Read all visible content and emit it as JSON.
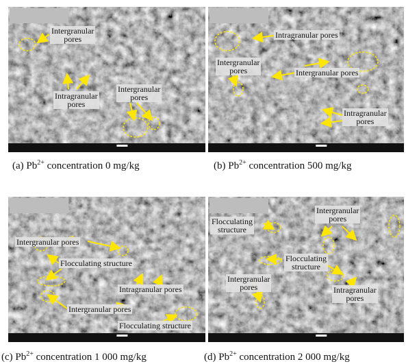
{
  "panels": [
    {
      "labels": [
        [
          "Intergranular",
          "pores"
        ],
        [
          "Intragranular",
          "pores"
        ],
        [
          "Intergranular",
          "pores"
        ]
      ],
      "caption": {
        "prefix": "(a) Pb",
        "sup": "2+",
        "suffix": " concentration 0 mg/kg"
      }
    },
    {
      "labels": [
        [
          "Intragranular pores"
        ],
        [
          "Intergranular",
          "pores"
        ],
        [
          "Intergranular pores"
        ],
        [
          "Intragranular",
          "pores"
        ]
      ],
      "caption": {
        "prefix": "(b) Pb",
        "sup": "2+",
        "suffix": " concentration 500 mg/kg"
      }
    },
    {
      "labels": [
        [
          "Intergranular pores"
        ],
        [
          "Flocculating structure"
        ],
        [
          "Intragranular pores"
        ],
        [
          "Intergranular pores"
        ],
        [
          "Flocculating structure"
        ]
      ],
      "caption": {
        "prefix": "(c) Pb",
        "sup": "2+",
        "suffix": " concentration 1 000 mg/kg"
      }
    },
    {
      "labels": [
        [
          "Flocculating",
          "structure"
        ],
        [
          "Intergranular",
          "pores"
        ],
        [
          "Flocculating",
          "structure"
        ],
        [
          "Intergranular",
          "pores"
        ],
        [
          "Intragranular",
          "pores"
        ]
      ],
      "caption": {
        "prefix": "(d) Pb",
        "sup": "2+",
        "suffix": " concentration 2 000 mg/kg"
      }
    }
  ]
}
